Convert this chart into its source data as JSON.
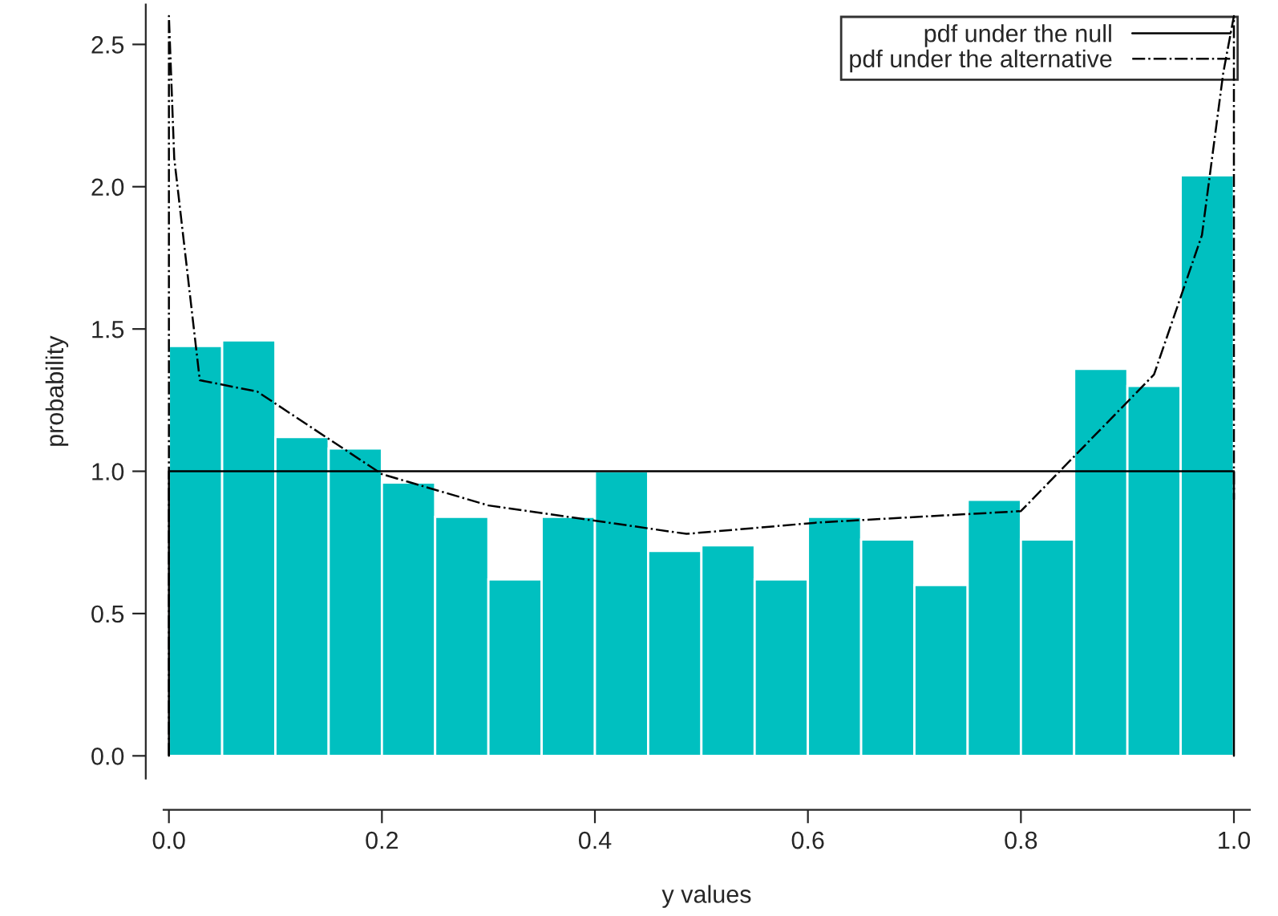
{
  "chart_data": {
    "type": "histogram",
    "xlabel": "y values",
    "ylabel": "probability",
    "bins": [
      0.0,
      0.05,
      0.1,
      0.15,
      0.2,
      0.25,
      0.3,
      0.35,
      0.4,
      0.45,
      0.5,
      0.55,
      0.6,
      0.65,
      0.7,
      0.75,
      0.8,
      0.85,
      0.9,
      0.95,
      1.0
    ],
    "values": [
      1.44,
      1.46,
      1.12,
      1.08,
      0.96,
      0.84,
      0.62,
      0.84,
      1.0,
      0.72,
      0.74,
      0.62,
      0.84,
      0.76,
      0.6,
      0.9,
      0.76,
      1.36,
      1.3,
      2.04
    ],
    "color": "#00c0c0",
    "series": [
      {
        "name": "pdf under the null",
        "type": "line",
        "color": "#000000",
        "line_style": "solid",
        "x": [
          0.0,
          0.0,
          1.0,
          1.0
        ],
        "values": [
          0.0,
          1.0,
          1.0,
          0.0
        ]
      },
      {
        "name": "pdf under the alternative",
        "type": "line",
        "color": "#000000",
        "line_style": "dashdot",
        "x": [
          0.0,
          0.0,
          0.005,
          0.029,
          0.083,
          0.2,
          0.3,
          0.486,
          0.61,
          0.8,
          0.925,
          0.97,
          0.99,
          1.0,
          1.0
        ],
        "values": [
          0.0,
          2.6,
          2.1,
          1.32,
          1.28,
          0.99,
          0.88,
          0.78,
          0.82,
          0.86,
          1.34,
          1.83,
          2.4,
          2.6,
          0.9
        ]
      }
    ],
    "xlim": [
      -0.005,
      1.015
    ],
    "ylim": [
      -0.08,
      2.64
    ],
    "xticks": [
      {
        "value": 0,
        "label": "0.0"
      },
      0.2,
      0.4,
      0.6,
      0.8,
      {
        "value": 1,
        "label": "1.0"
      }
    ],
    "yticks": [
      {
        "value": 0,
        "label": "0.0"
      },
      0.5,
      {
        "value": 1,
        "label": "1.0"
      },
      1.5,
      {
        "value": 2,
        "label": "2.0"
      },
      2.5
    ],
    "legend": "top right",
    "grid": false
  }
}
